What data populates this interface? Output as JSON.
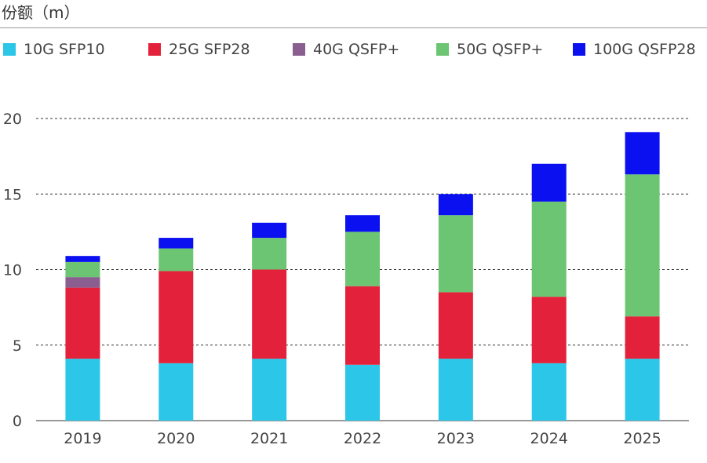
{
  "chart_data": {
    "type": "bar",
    "stacked": true,
    "title": "份额（m）",
    "categories": [
      "2019",
      "2020",
      "2021",
      "2022",
      "2023",
      "2024",
      "2025"
    ],
    "series": [
      {
        "name": "10G SFP10",
        "color": "#2bc6e8",
        "values": [
          4.1,
          3.8,
          4.1,
          3.7,
          4.1,
          3.8,
          4.1
        ]
      },
      {
        "name": "25G SFP28",
        "color": "#e4213a",
        "values": [
          4.7,
          6.1,
          5.9,
          5.2,
          4.4,
          4.4,
          2.8
        ]
      },
      {
        "name": "40G QSFP+",
        "color": "#8a5f8f",
        "values": [
          0.7,
          0,
          0,
          0,
          0,
          0,
          0
        ]
      },
      {
        "name": "50G QSFP+",
        "color": "#6cc573",
        "values": [
          1.0,
          1.5,
          2.1,
          3.6,
          5.1,
          6.3,
          9.4
        ]
      },
      {
        "name": "100G QSFP28",
        "color": "#0a10f0",
        "values": [
          0.4,
          0.7,
          1.0,
          1.1,
          1.4,
          2.5,
          2.8
        ]
      }
    ],
    "ylim": [
      0,
      20
    ],
    "yticks": [
      "0",
      "5",
      "10",
      "15",
      "20"
    ],
    "grid": true,
    "legend_position": "top"
  }
}
